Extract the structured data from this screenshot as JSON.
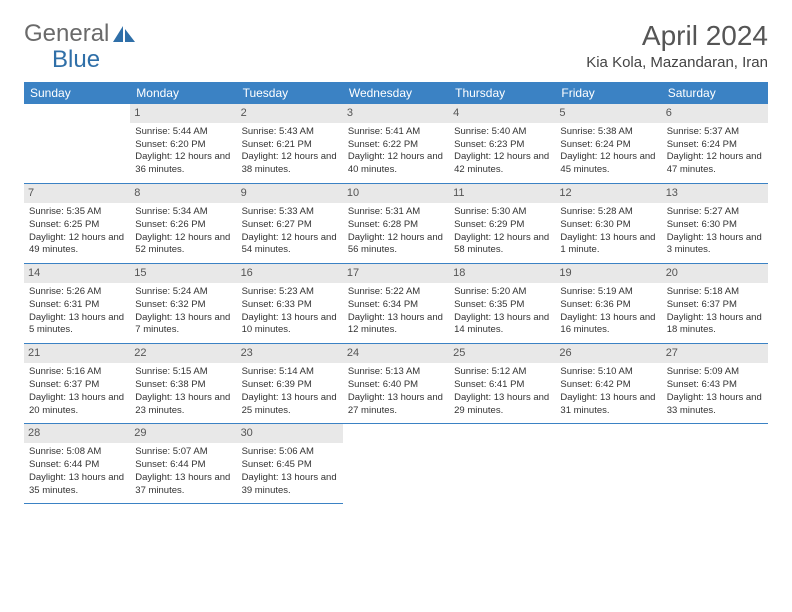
{
  "logo": {
    "text1": "General",
    "text2": "Blue",
    "color1": "#6a6a6a",
    "color2": "#2f6fa8"
  },
  "title": "April 2024",
  "location": "Kia Kola, Mazandaran, Iran",
  "header_bg": "#3b82c4",
  "daynum_bg": "#e8e8e8",
  "weekdays": [
    "Sunday",
    "Monday",
    "Tuesday",
    "Wednesday",
    "Thursday",
    "Friday",
    "Saturday"
  ],
  "weeks": [
    [
      null,
      {
        "d": "1",
        "sr": "5:44 AM",
        "ss": "6:20 PM",
        "dl": "12 hours and 36 minutes."
      },
      {
        "d": "2",
        "sr": "5:43 AM",
        "ss": "6:21 PM",
        "dl": "12 hours and 38 minutes."
      },
      {
        "d": "3",
        "sr": "5:41 AM",
        "ss": "6:22 PM",
        "dl": "12 hours and 40 minutes."
      },
      {
        "d": "4",
        "sr": "5:40 AM",
        "ss": "6:23 PM",
        "dl": "12 hours and 42 minutes."
      },
      {
        "d": "5",
        "sr": "5:38 AM",
        "ss": "6:24 PM",
        "dl": "12 hours and 45 minutes."
      },
      {
        "d": "6",
        "sr": "5:37 AM",
        "ss": "6:24 PM",
        "dl": "12 hours and 47 minutes."
      }
    ],
    [
      {
        "d": "7",
        "sr": "5:35 AM",
        "ss": "6:25 PM",
        "dl": "12 hours and 49 minutes."
      },
      {
        "d": "8",
        "sr": "5:34 AM",
        "ss": "6:26 PM",
        "dl": "12 hours and 52 minutes."
      },
      {
        "d": "9",
        "sr": "5:33 AM",
        "ss": "6:27 PM",
        "dl": "12 hours and 54 minutes."
      },
      {
        "d": "10",
        "sr": "5:31 AM",
        "ss": "6:28 PM",
        "dl": "12 hours and 56 minutes."
      },
      {
        "d": "11",
        "sr": "5:30 AM",
        "ss": "6:29 PM",
        "dl": "12 hours and 58 minutes."
      },
      {
        "d": "12",
        "sr": "5:28 AM",
        "ss": "6:30 PM",
        "dl": "13 hours and 1 minute."
      },
      {
        "d": "13",
        "sr": "5:27 AM",
        "ss": "6:30 PM",
        "dl": "13 hours and 3 minutes."
      }
    ],
    [
      {
        "d": "14",
        "sr": "5:26 AM",
        "ss": "6:31 PM",
        "dl": "13 hours and 5 minutes."
      },
      {
        "d": "15",
        "sr": "5:24 AM",
        "ss": "6:32 PM",
        "dl": "13 hours and 7 minutes."
      },
      {
        "d": "16",
        "sr": "5:23 AM",
        "ss": "6:33 PM",
        "dl": "13 hours and 10 minutes."
      },
      {
        "d": "17",
        "sr": "5:22 AM",
        "ss": "6:34 PM",
        "dl": "13 hours and 12 minutes."
      },
      {
        "d": "18",
        "sr": "5:20 AM",
        "ss": "6:35 PM",
        "dl": "13 hours and 14 minutes."
      },
      {
        "d": "19",
        "sr": "5:19 AM",
        "ss": "6:36 PM",
        "dl": "13 hours and 16 minutes."
      },
      {
        "d": "20",
        "sr": "5:18 AM",
        "ss": "6:37 PM",
        "dl": "13 hours and 18 minutes."
      }
    ],
    [
      {
        "d": "21",
        "sr": "5:16 AM",
        "ss": "6:37 PM",
        "dl": "13 hours and 20 minutes."
      },
      {
        "d": "22",
        "sr": "5:15 AM",
        "ss": "6:38 PM",
        "dl": "13 hours and 23 minutes."
      },
      {
        "d": "23",
        "sr": "5:14 AM",
        "ss": "6:39 PM",
        "dl": "13 hours and 25 minutes."
      },
      {
        "d": "24",
        "sr": "5:13 AM",
        "ss": "6:40 PM",
        "dl": "13 hours and 27 minutes."
      },
      {
        "d": "25",
        "sr": "5:12 AM",
        "ss": "6:41 PM",
        "dl": "13 hours and 29 minutes."
      },
      {
        "d": "26",
        "sr": "5:10 AM",
        "ss": "6:42 PM",
        "dl": "13 hours and 31 minutes."
      },
      {
        "d": "27",
        "sr": "5:09 AM",
        "ss": "6:43 PM",
        "dl": "13 hours and 33 minutes."
      }
    ],
    [
      {
        "d": "28",
        "sr": "5:08 AM",
        "ss": "6:44 PM",
        "dl": "13 hours and 35 minutes."
      },
      {
        "d": "29",
        "sr": "5:07 AM",
        "ss": "6:44 PM",
        "dl": "13 hours and 37 minutes."
      },
      {
        "d": "30",
        "sr": "5:06 AM",
        "ss": "6:45 PM",
        "dl": "13 hours and 39 minutes."
      },
      null,
      null,
      null,
      null
    ]
  ],
  "labels": {
    "sunrise": "Sunrise:",
    "sunset": "Sunset:",
    "daylight": "Daylight:"
  }
}
